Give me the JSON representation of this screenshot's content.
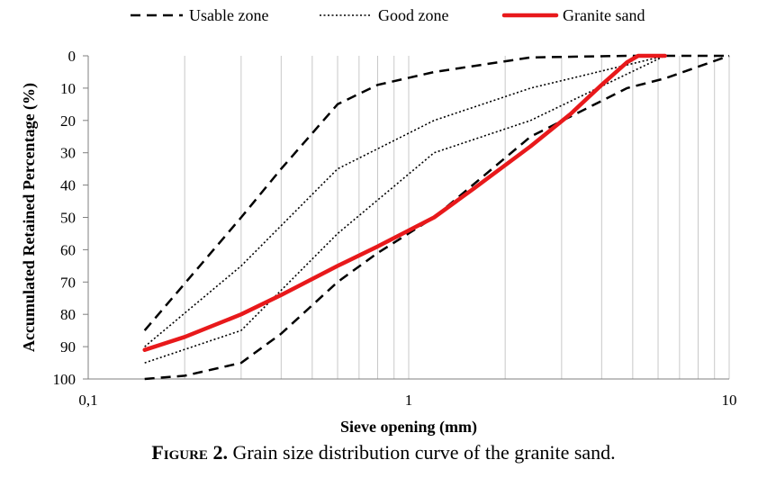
{
  "chart_data": {
    "type": "line",
    "title": "",
    "xlabel": "Sieve opening (mm)",
    "ylabel": "Accumulated Retained Percentage (%)",
    "xscale": "log",
    "xlim": [
      0.1,
      10
    ],
    "ylim": [
      0,
      100
    ],
    "y_inverted": true,
    "x_ticks": [
      0.1,
      1,
      10
    ],
    "x_tick_labels": [
      "0,1",
      "1",
      "10"
    ],
    "y_ticks": [
      0,
      10,
      20,
      30,
      40,
      50,
      60,
      70,
      80,
      90,
      100
    ],
    "y_tick_labels": [
      "0",
      "10",
      "20",
      "30",
      "40",
      "50",
      "60",
      "70",
      "80",
      "90",
      "100"
    ],
    "grid": "vertical",
    "legend": "top",
    "series": [
      {
        "name": "Usable zone",
        "style": "dashed",
        "color": "#000000",
        "points": [
          [
            0.15,
            100
          ],
          [
            0.2,
            99
          ],
          [
            0.3,
            95
          ],
          [
            0.4,
            86
          ],
          [
            0.6,
            70
          ],
          [
            0.8,
            61
          ],
          [
            1.2,
            50
          ],
          [
            2.4,
            25
          ],
          [
            4.8,
            10
          ],
          [
            6.3,
            7
          ],
          [
            10,
            0
          ]
        ]
      },
      {
        "name": "Usable zone",
        "style": "dashed",
        "color": "#000000",
        "points": [
          [
            0.15,
            85
          ],
          [
            0.3,
            50
          ],
          [
            0.4,
            35
          ],
          [
            0.6,
            15
          ],
          [
            0.8,
            9
          ],
          [
            1.2,
            5
          ],
          [
            2.4,
            0.5
          ],
          [
            4.8,
            0
          ],
          [
            10,
            0
          ]
        ]
      },
      {
        "name": "Good zone",
        "style": "dotted",
        "color": "#000000",
        "points": [
          [
            0.15,
            95
          ],
          [
            0.3,
            85
          ],
          [
            0.6,
            55
          ],
          [
            1.2,
            30
          ],
          [
            2.4,
            20
          ],
          [
            6.3,
            0
          ]
        ]
      },
      {
        "name": "Good zone",
        "style": "dotted",
        "color": "#000000",
        "points": [
          [
            0.15,
            90
          ],
          [
            0.3,
            65
          ],
          [
            0.6,
            35
          ],
          [
            1.2,
            20
          ],
          [
            2.4,
            10
          ],
          [
            6.3,
            0
          ]
        ]
      },
      {
        "name": "Granite sand",
        "style": "solid",
        "color": "#e8191b",
        "points": [
          [
            0.15,
            91
          ],
          [
            0.2,
            87
          ],
          [
            0.3,
            80
          ],
          [
            0.4,
            74
          ],
          [
            0.6,
            65
          ],
          [
            0.8,
            59
          ],
          [
            1.2,
            50
          ],
          [
            1.6,
            41
          ],
          [
            2.4,
            28
          ],
          [
            3.2,
            18
          ],
          [
            4.0,
            9
          ],
          [
            4.8,
            2
          ],
          [
            5.2,
            0
          ],
          [
            6.3,
            0
          ]
        ]
      }
    ],
    "legend_entries": [
      {
        "label": "Usable zone",
        "style": "dashed",
        "color": "#000000"
      },
      {
        "label": "Good zone",
        "style": "dotted",
        "color": "#000000"
      },
      {
        "label": "Granite sand",
        "style": "solid",
        "color": "#e8191b"
      }
    ]
  },
  "caption": {
    "figure_label": "Figure 2.",
    "text": " Grain size distribution curve of the granite sand."
  }
}
